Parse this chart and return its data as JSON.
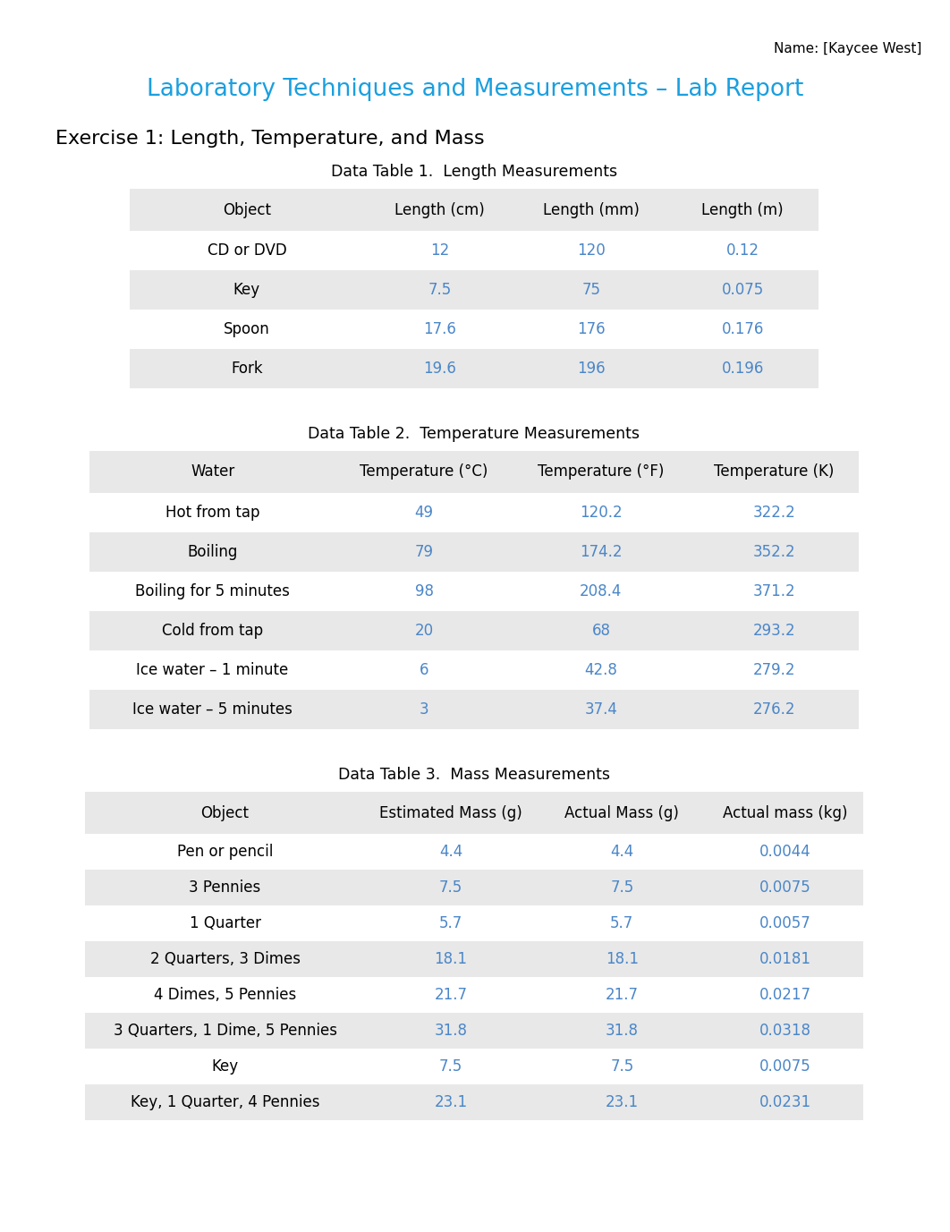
{
  "title": "Laboratory Techniques and Measurements – Lab Report",
  "name_label": "Name: [Kaycee West]",
  "exercise_title": "Exercise 1: Length, Temperature, and Mass",
  "table1_title": "Data Table 1.  Length Measurements",
  "table1_headers": [
    "Object",
    "Length (cm)",
    "Length (mm)",
    "Length (m)"
  ],
  "table1_rows": [
    [
      "CD or DVD",
      "12",
      "120",
      "0.12"
    ],
    [
      "Key",
      "7.5",
      "75",
      "0.075"
    ],
    [
      "Spoon",
      "17.6",
      "176",
      "0.176"
    ],
    [
      "Fork",
      "19.6",
      "196",
      "0.196"
    ]
  ],
  "table2_title": "Data Table 2.  Temperature Measurements",
  "table2_headers": [
    "Water",
    "Temperature (°C)",
    "Temperature (°F)",
    "Temperature (K)"
  ],
  "table2_rows": [
    [
      "Hot from tap",
      "49",
      "120.2",
      "322.2"
    ],
    [
      "Boiling",
      "79",
      "174.2",
      "352.2"
    ],
    [
      "Boiling for 5 minutes",
      "98",
      "208.4",
      "371.2"
    ],
    [
      "Cold from tap",
      "20",
      "68",
      "293.2"
    ],
    [
      "Ice water – 1 minute",
      "6",
      "42.8",
      "279.2"
    ],
    [
      "Ice water – 5 minutes",
      "3",
      "37.4",
      "276.2"
    ]
  ],
  "table3_title": "Data Table 3.  Mass Measurements",
  "table3_headers": [
    "Object",
    "Estimated Mass (g)",
    "Actual Mass (g)",
    "Actual mass (kg)"
  ],
  "table3_rows": [
    [
      "Pen or pencil",
      "4.4",
      "4.4",
      "0.0044"
    ],
    [
      "3 Pennies",
      "7.5",
      "7.5",
      "0.0075"
    ],
    [
      "1 Quarter",
      "5.7",
      "5.7",
      "0.0057"
    ],
    [
      "2 Quarters, 3 Dimes",
      "18.1",
      "18.1",
      "0.0181"
    ],
    [
      "4 Dimes, 5 Pennies",
      "21.7",
      "21.7",
      "0.0217"
    ],
    [
      "3 Quarters, 1 Dime, 5 Pennies",
      "31.8",
      "31.8",
      "0.0318"
    ],
    [
      "Key",
      "7.5",
      "7.5",
      "0.0075"
    ],
    [
      "Key, 1 Quarter, 4 Pennies",
      "23.1",
      "23.1",
      "0.0231"
    ]
  ],
  "table_bg_light": "#e8e8e8",
  "table_bg_white": "#f0f0f0",
  "header_color": "#000000",
  "data_color": "#4a86c8",
  "title_color": "#1a9fdf",
  "page_bg": "#ffffff"
}
